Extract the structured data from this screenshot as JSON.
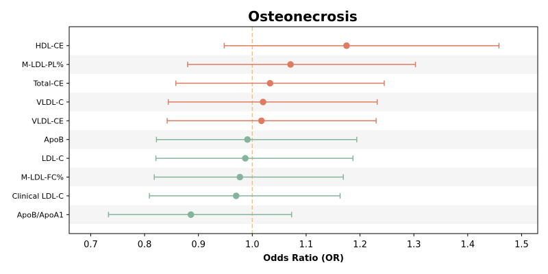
{
  "chart_data": {
    "type": "forest",
    "title": "Osteonecrosis",
    "xlabel": "Odds Ratio (OR)",
    "ylabel": "",
    "xlim": [
      0.66,
      1.53
    ],
    "xticks": [
      0.7,
      0.8,
      0.9,
      1.0,
      1.1,
      1.2,
      1.3,
      1.4,
      1.5
    ],
    "xtick_labels": [
      "0.7",
      "0.8",
      "0.9",
      "1.0",
      "1.1",
      "1.2",
      "1.3",
      "1.4",
      "1.5"
    ],
    "reference_line": 1.0,
    "reference_color": "#f5c27a",
    "stripe_color": "#f5f5f5",
    "grid": false,
    "colors": {
      "risk": "#e07b62",
      "protective": "#84b49b"
    },
    "rows": [
      {
        "label": "HDL-CE",
        "or": 1.175,
        "lo": 0.948,
        "hi": 1.458,
        "group": "risk"
      },
      {
        "label": "M-LDL-PL%",
        "or": 1.071,
        "lo": 0.88,
        "hi": 1.303,
        "group": "risk"
      },
      {
        "label": "Total-CE",
        "or": 1.033,
        "lo": 0.858,
        "hi": 1.245,
        "group": "risk"
      },
      {
        "label": "VLDL-C",
        "or": 1.02,
        "lo": 0.844,
        "hi": 1.232,
        "group": "risk"
      },
      {
        "label": "VLDL-CE",
        "or": 1.017,
        "lo": 0.842,
        "hi": 1.23,
        "group": "risk"
      },
      {
        "label": "ApoB",
        "or": 0.991,
        "lo": 0.822,
        "hi": 1.194,
        "group": "protective"
      },
      {
        "label": "LDL-C",
        "or": 0.987,
        "lo": 0.821,
        "hi": 1.187,
        "group": "protective"
      },
      {
        "label": "M-LDL-FC%",
        "or": 0.977,
        "lo": 0.818,
        "hi": 1.169,
        "group": "protective"
      },
      {
        "label": "Clinical LDL-C",
        "or": 0.97,
        "lo": 0.809,
        "hi": 1.163,
        "group": "protective"
      },
      {
        "label": "ApoB/ApoA1",
        "or": 0.886,
        "lo": 0.733,
        "hi": 1.073,
        "group": "protective"
      }
    ]
  }
}
